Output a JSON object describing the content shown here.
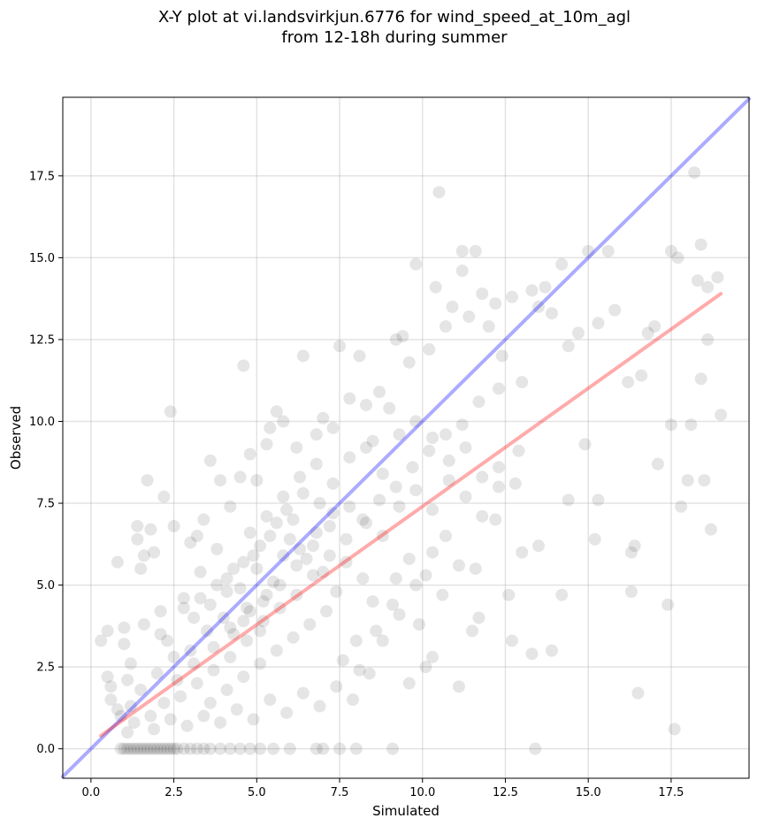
{
  "title_line1": "X-Y plot at vi.landsvirkjun.6776 for wind_speed_at_10m_agl",
  "title_line2": "from 12-18h during summer",
  "chart_data": {
    "type": "scatter",
    "title": "X-Y plot at vi.landsvirkjun.6776 for wind_speed_at_10m_agl from 12-18h during summer",
    "xlabel": "Simulated",
    "ylabel": "Observed",
    "xlim": [
      -0.85,
      19.85
    ],
    "ylim": [
      -0.9,
      19.9
    ],
    "x_ticks": [
      "0.0",
      "2.5",
      "5.0",
      "7.5",
      "10.0",
      "12.5",
      "15.0",
      "17.5"
    ],
    "y_ticks": [
      "0.0",
      "2.5",
      "5.0",
      "7.5",
      "10.0",
      "12.5",
      "15.0",
      "17.5"
    ],
    "grid": true,
    "point_color": "#000000",
    "point_opacity": 0.1,
    "reference_line": {
      "slope": 1,
      "intercept": 0,
      "color": "#0000ff"
    },
    "fit_line": {
      "x": [
        0.3,
        19.0
      ],
      "y": [
        0.4,
        13.9
      ],
      "color": "#ff0000"
    },
    "points": [
      [
        0.3,
        3.3
      ],
      [
        0.5,
        3.6
      ],
      [
        0.5,
        2.2
      ],
      [
        0.6,
        1.9
      ],
      [
        0.6,
        1.5
      ],
      [
        0.8,
        1.2
      ],
      [
        0.8,
        5.7
      ],
      [
        1.0,
        3.7
      ],
      [
        1.0,
        3.2
      ],
      [
        1.1,
        2.1
      ],
      [
        1.2,
        1.3
      ],
      [
        1.4,
        6.4
      ],
      [
        1.4,
        6.8
      ],
      [
        1.5,
        5.5
      ],
      [
        1.6,
        5.9
      ],
      [
        1.7,
        8.2
      ],
      [
        1.8,
        6.7
      ],
      [
        1.9,
        6.0
      ],
      [
        2.1,
        4.2
      ],
      [
        2.2,
        7.7
      ],
      [
        2.3,
        3.3
      ],
      [
        2.4,
        10.3
      ],
      [
        2.5,
        6.8
      ],
      [
        2.8,
        4.6
      ],
      [
        3.0,
        6.3
      ],
      [
        3.2,
        6.5
      ],
      [
        3.4,
        7.0
      ],
      [
        3.6,
        8.8
      ],
      [
        3.9,
        8.2
      ],
      [
        4.2,
        7.4
      ],
      [
        4.5,
        8.3
      ],
      [
        4.6,
        11.7
      ],
      [
        4.8,
        9.0
      ],
      [
        5.0,
        8.2
      ],
      [
        5.3,
        9.3
      ],
      [
        5.4,
        9.8
      ],
      [
        5.6,
        10.3
      ],
      [
        5.8,
        10.0
      ],
      [
        6.2,
        9.2
      ],
      [
        6.4,
        12.0
      ],
      [
        6.8,
        9.6
      ],
      [
        7.0,
        10.1
      ],
      [
        7.3,
        9.8
      ],
      [
        7.5,
        12.3
      ],
      [
        7.8,
        10.7
      ],
      [
        8.1,
        12.0
      ],
      [
        8.3,
        10.5
      ],
      [
        8.5,
        9.4
      ],
      [
        8.7,
        10.9
      ],
      [
        9.0,
        10.4
      ],
      [
        9.2,
        12.5
      ],
      [
        9.4,
        12.6
      ],
      [
        9.6,
        11.8
      ],
      [
        9.8,
        14.8
      ],
      [
        10.2,
        12.2
      ],
      [
        10.4,
        14.1
      ],
      [
        10.5,
        17.0
      ],
      [
        10.7,
        12.9
      ],
      [
        10.9,
        13.5
      ],
      [
        11.2,
        15.2
      ],
      [
        11.2,
        14.6
      ],
      [
        11.4,
        13.2
      ],
      [
        11.6,
        15.2
      ],
      [
        11.8,
        13.9
      ],
      [
        12.0,
        12.9
      ],
      [
        12.2,
        13.6
      ],
      [
        12.4,
        12.0
      ],
      [
        12.7,
        13.8
      ],
      [
        13.0,
        11.2
      ],
      [
        13.3,
        14.0
      ],
      [
        13.5,
        13.5
      ],
      [
        13.7,
        14.1
      ],
      [
        13.9,
        13.3
      ],
      [
        14.2,
        14.8
      ],
      [
        14.4,
        12.3
      ],
      [
        14.7,
        12.7
      ],
      [
        15.0,
        15.2
      ],
      [
        15.3,
        13.0
      ],
      [
        15.6,
        15.2
      ],
      [
        15.8,
        13.4
      ],
      [
        16.2,
        11.2
      ],
      [
        16.3,
        6.0
      ],
      [
        16.4,
        6.2
      ],
      [
        16.6,
        11.4
      ],
      [
        16.8,
        12.7
      ],
      [
        17.0,
        12.9
      ],
      [
        17.1,
        8.7
      ],
      [
        17.4,
        4.4
      ],
      [
        17.5,
        15.2
      ],
      [
        17.5,
        9.9
      ],
      [
        17.7,
        15.0
      ],
      [
        17.8,
        7.4
      ],
      [
        18.0,
        8.2
      ],
      [
        18.1,
        9.9
      ],
      [
        18.2,
        17.6
      ],
      [
        18.3,
        14.3
      ],
      [
        18.4,
        15.4
      ],
      [
        18.4,
        11.3
      ],
      [
        18.5,
        8.2
      ],
      [
        18.6,
        14.1
      ],
      [
        18.6,
        12.5
      ],
      [
        18.7,
        6.7
      ],
      [
        18.9,
        14.4
      ],
      [
        19.0,
        10.2
      ],
      [
        17.6,
        0.6
      ],
      [
        16.5,
        1.7
      ],
      [
        16.3,
        4.8
      ],
      [
        15.2,
        6.4
      ],
      [
        14.2,
        4.7
      ],
      [
        13.9,
        3.0
      ],
      [
        13.3,
        2.9
      ],
      [
        12.7,
        3.3
      ],
      [
        12.6,
        4.7
      ],
      [
        11.1,
        1.9
      ],
      [
        11.5,
        3.6
      ],
      [
        11.7,
        4.0
      ],
      [
        10.3,
        2.8
      ],
      [
        10.1,
        2.5
      ],
      [
        9.9,
        3.8
      ],
      [
        9.6,
        2.0
      ],
      [
        9.3,
        4.1
      ],
      [
        8.8,
        3.3
      ],
      [
        13.4,
        0.0
      ],
      [
        9.1,
        0.0
      ],
      [
        8.0,
        0.0
      ],
      [
        7.5,
        0.0
      ],
      [
        7.0,
        0.0
      ],
      [
        6.8,
        0.0
      ],
      [
        13.0,
        6.0
      ],
      [
        13.5,
        6.2
      ],
      [
        14.4,
        7.6
      ],
      [
        14.9,
        9.3
      ],
      [
        15.3,
        7.6
      ],
      [
        12.9,
        9.1
      ],
      [
        12.2,
        7.0
      ],
      [
        11.6,
        5.5
      ],
      [
        10.7,
        6.5
      ],
      [
        10.3,
        6.0
      ],
      [
        9.8,
        5.0
      ],
      [
        9.2,
        5.2
      ],
      [
        8.5,
        4.5
      ],
      [
        8.0,
        3.3
      ],
      [
        7.4,
        4.8
      ],
      [
        7.0,
        5.4
      ],
      [
        6.5,
        5.8
      ],
      [
        6.0,
        6.4
      ],
      [
        5.5,
        5.1
      ],
      [
        5.0,
        5.5
      ],
      [
        4.5,
        4.9
      ],
      [
        4.0,
        4.0
      ],
      [
        3.5,
        3.6
      ],
      [
        3.0,
        3.0
      ],
      [
        2.5,
        2.8
      ],
      [
        2.0,
        2.3
      ],
      [
        1.5,
        1.8
      ],
      [
        1.2,
        2.6
      ],
      [
        0.9,
        1.0
      ],
      [
        1.1,
        0.5
      ],
      [
        1.8,
        1.0
      ],
      [
        2.2,
        1.4
      ],
      [
        2.7,
        1.6
      ],
      [
        3.2,
        2.0
      ],
      [
        3.7,
        2.4
      ],
      [
        4.2,
        2.8
      ],
      [
        4.7,
        3.3
      ],
      [
        5.2,
        3.9
      ],
      [
        5.7,
        4.3
      ],
      [
        6.2,
        4.7
      ],
      [
        6.7,
        5.3
      ],
      [
        7.2,
        5.9
      ],
      [
        7.7,
        6.4
      ],
      [
        8.2,
        7.0
      ],
      [
        8.7,
        7.6
      ],
      [
        9.2,
        8.0
      ],
      [
        9.7,
        8.6
      ],
      [
        10.2,
        9.1
      ],
      [
        10.7,
        9.6
      ],
      [
        11.2,
        9.9
      ],
      [
        11.7,
        10.6
      ],
      [
        12.3,
        11.0
      ],
      [
        3.3,
        5.4
      ],
      [
        3.8,
        6.1
      ],
      [
        4.3,
        5.5
      ],
      [
        4.8,
        6.6
      ],
      [
        5.3,
        7.1
      ],
      [
        5.8,
        7.7
      ],
      [
        6.3,
        8.3
      ],
      [
        6.8,
        8.7
      ],
      [
        7.3,
        8.1
      ],
      [
        7.8,
        8.9
      ],
      [
        8.3,
        9.2
      ],
      [
        8.8,
        8.4
      ],
      [
        9.3,
        9.6
      ],
      [
        9.8,
        10.0
      ],
      [
        10.3,
        9.5
      ],
      [
        10.8,
        8.8
      ],
      [
        11.3,
        9.2
      ],
      [
        11.8,
        8.3
      ],
      [
        12.3,
        8.6
      ],
      [
        12.8,
        8.1
      ],
      [
        2.8,
        4.3
      ],
      [
        3.3,
        4.6
      ],
      [
        3.8,
        5.0
      ],
      [
        4.3,
        3.5
      ],
      [
        4.8,
        4.2
      ],
      [
        5.3,
        4.7
      ],
      [
        5.8,
        5.9
      ],
      [
        6.3,
        6.1
      ],
      [
        6.8,
        6.6
      ],
      [
        7.3,
        7.2
      ],
      [
        7.8,
        7.4
      ],
      [
        8.3,
        6.9
      ],
      [
        8.8,
        6.5
      ],
      [
        9.3,
        7.4
      ],
      [
        9.8,
        7.9
      ],
      [
        10.3,
        7.3
      ],
      [
        10.8,
        8.2
      ],
      [
        11.3,
        7.7
      ],
      [
        11.8,
        7.1
      ],
      [
        12.3,
        8.0
      ],
      [
        1.6,
        3.8
      ],
      [
        2.1,
        3.5
      ],
      [
        2.6,
        2.1
      ],
      [
        3.1,
        2.6
      ],
      [
        3.6,
        1.4
      ],
      [
        4.1,
        1.8
      ],
      [
        4.6,
        2.2
      ],
      [
        5.1,
        2.6
      ],
      [
        5.6,
        3.0
      ],
      [
        6.1,
        3.4
      ],
      [
        6.6,
        3.8
      ],
      [
        7.1,
        4.2
      ],
      [
        7.6,
        2.7
      ],
      [
        8.1,
        2.4
      ],
      [
        8.6,
        3.6
      ],
      [
        9.1,
        4.4
      ],
      [
        9.6,
        5.8
      ],
      [
        10.1,
        5.3
      ],
      [
        10.6,
        4.7
      ],
      [
        11.1,
        5.6
      ],
      [
        1.3,
        0.8
      ],
      [
        1.9,
        0.6
      ],
      [
        2.4,
        0.9
      ],
      [
        2.9,
        0.7
      ],
      [
        3.4,
        1.0
      ],
      [
        3.9,
        0.8
      ],
      [
        4.4,
        1.2
      ],
      [
        4.9,
        0.9
      ],
      [
        5.4,
        1.5
      ],
      [
        5.9,
        1.1
      ],
      [
        6.4,
        1.7
      ],
      [
        6.9,
        1.3
      ],
      [
        7.4,
        1.9
      ],
      [
        7.9,
        1.5
      ],
      [
        8.4,
        2.3
      ],
      [
        3.7,
        3.1
      ],
      [
        4.2,
        3.7
      ],
      [
        4.7,
        4.3
      ],
      [
        5.2,
        4.5
      ],
      [
        5.7,
        5.0
      ],
      [
        6.2,
        5.6
      ],
      [
        6.7,
        6.2
      ],
      [
        7.2,
        6.8
      ],
      [
        7.7,
        5.7
      ],
      [
        8.2,
        5.2
      ],
      [
        4.9,
        5.9
      ],
      [
        5.4,
        6.5
      ],
      [
        5.9,
        7.3
      ],
      [
        6.4,
        7.8
      ],
      [
        6.9,
        7.5
      ],
      [
        4.1,
        5.2
      ],
      [
        4.6,
        5.7
      ],
      [
        5.1,
        6.2
      ],
      [
        5.6,
        6.9
      ],
      [
        6.1,
        7.0
      ],
      [
        3.1,
        4.0
      ],
      [
        3.6,
        4.4
      ],
      [
        4.1,
        4.8
      ],
      [
        4.6,
        3.9
      ],
      [
        5.1,
        3.6
      ],
      [
        0.9,
        0.0
      ],
      [
        1.0,
        0.0
      ],
      [
        1.1,
        0.0
      ],
      [
        1.2,
        0.0
      ],
      [
        1.3,
        0.0
      ],
      [
        1.4,
        0.0
      ],
      [
        1.5,
        0.0
      ],
      [
        1.6,
        0.0
      ],
      [
        1.7,
        0.0
      ],
      [
        1.8,
        0.0
      ],
      [
        1.9,
        0.0
      ],
      [
        2.0,
        0.0
      ],
      [
        2.1,
        0.0
      ],
      [
        2.2,
        0.0
      ],
      [
        2.3,
        0.0
      ],
      [
        2.4,
        0.0
      ],
      [
        2.5,
        0.0
      ],
      [
        2.6,
        0.0
      ],
      [
        2.8,
        0.0
      ],
      [
        3.0,
        0.0
      ],
      [
        3.2,
        0.0
      ],
      [
        3.4,
        0.0
      ],
      [
        3.6,
        0.0
      ],
      [
        3.9,
        0.0
      ],
      [
        4.2,
        0.0
      ],
      [
        4.5,
        0.0
      ],
      [
        4.8,
        0.0
      ],
      [
        5.1,
        0.0
      ],
      [
        5.5,
        0.0
      ],
      [
        6.0,
        0.0
      ]
    ]
  }
}
